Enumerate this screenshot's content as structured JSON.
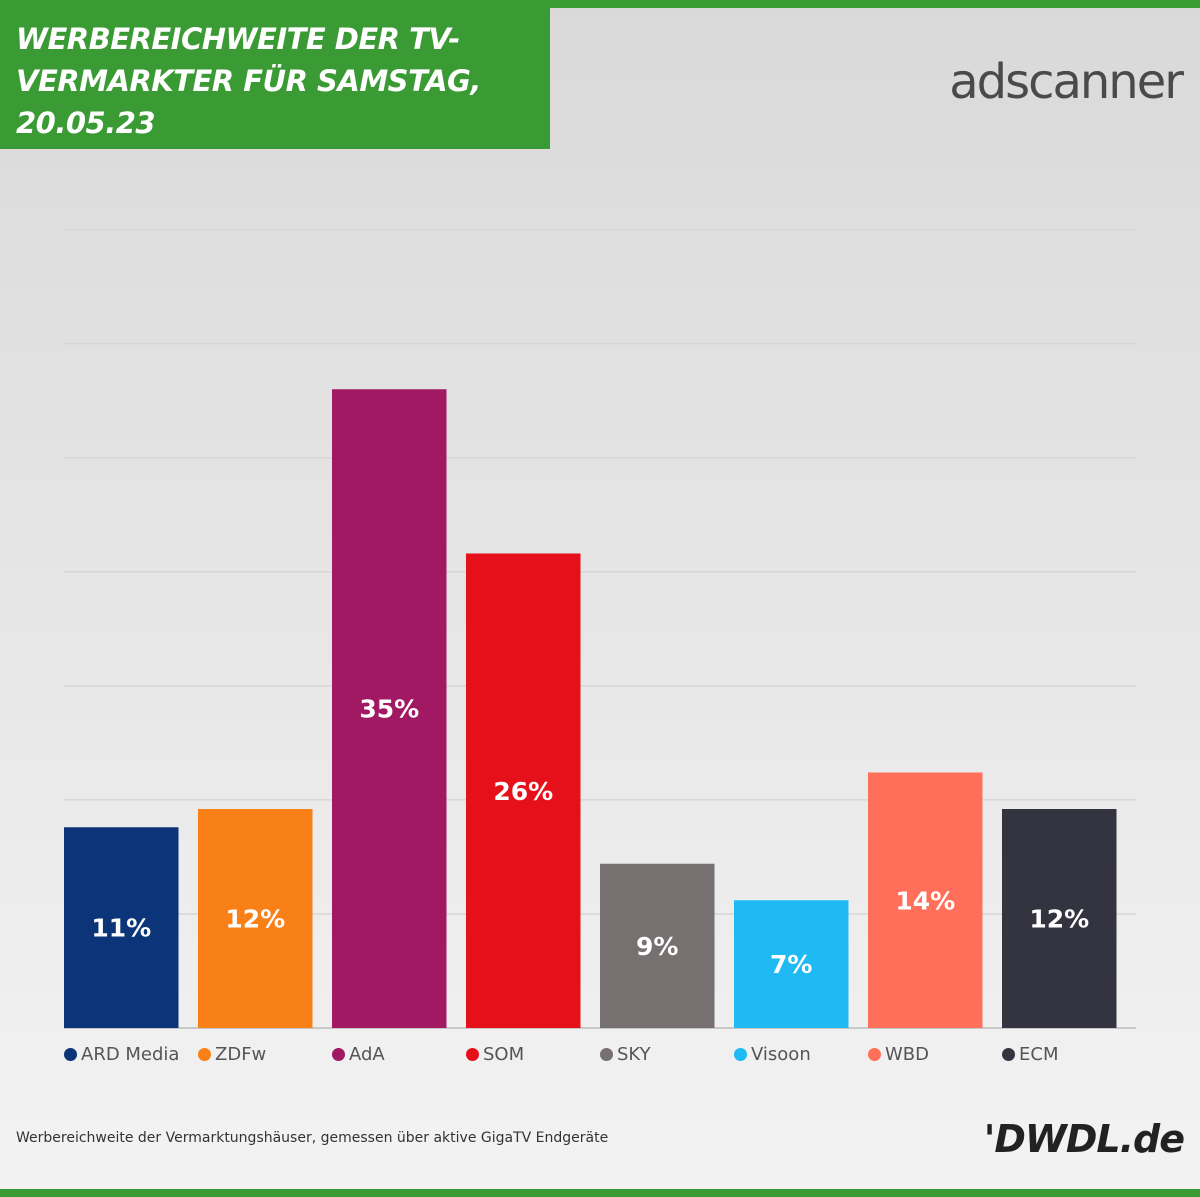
{
  "header": {
    "title": "WERBEREICHWEITE DER TV-VERMARKTER FÜR SAMSTAG, 20.05.23",
    "brand_logo_text": "adscanner",
    "accent_color": "#3a9b35"
  },
  "chart_data": {
    "type": "bar",
    "title": "WERBEREICHWEITE DER TV-VERMARKTER FÜR SAMSTAG, 20.05.23",
    "xlabel": "",
    "ylabel": "",
    "ylim": [
      0,
      45
    ],
    "grid": true,
    "legend_position": "bottom",
    "categories": [
      "ARD Media",
      "ZDFw",
      "AdA",
      "SOM",
      "SKY",
      "Visoon",
      "WBD",
      "ECM"
    ],
    "values": [
      11,
      12,
      35,
      26,
      9,
      7,
      14,
      12
    ],
    "data_labels": [
      "11%",
      "12%",
      "35%",
      "26%",
      "9%",
      "7%",
      "14%",
      "12%"
    ],
    "colors": [
      "#0c3478",
      "#f98017",
      "#a11863",
      "#e6101b",
      "#767070",
      "#1fbaf3",
      "#ff6f59",
      "#33343f"
    ]
  },
  "footer": {
    "note": "Werbereichweite der Vermarktungshäuser, gemessen über aktive GigaTV Endgeräte",
    "source_logo_text": "'DWDL.de"
  }
}
